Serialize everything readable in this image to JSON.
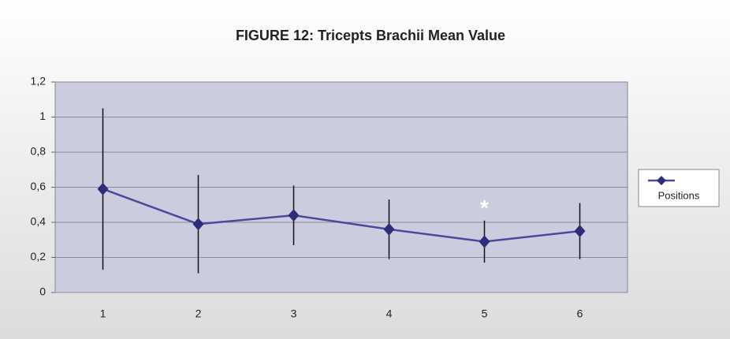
{
  "chart_data": {
    "type": "line",
    "title": "FIGURE 12: Tricepts Brachii Mean Value",
    "categories": [
      "1",
      "2",
      "3",
      "4",
      "5",
      "6"
    ],
    "series": [
      {
        "name": "Positions",
        "color": "#4a4a9a",
        "values": [
          0.59,
          0.39,
          0.44,
          0.36,
          0.29,
          0.35
        ],
        "errors": [
          0.46,
          0.28,
          0.17,
          0.17,
          0.12,
          0.16
        ]
      }
    ],
    "annotation": "*",
    "ylim": [
      0,
      1.2
    ],
    "yticks": [
      0,
      {
        "value": 0.2,
        "label": "0,2"
      },
      {
        "value": 0.4,
        "label": "0,4"
      },
      {
        "value": 0.6,
        "label": "0,6"
      },
      {
        "value": 0.8,
        "label": "0,8"
      },
      1,
      {
        "value": 1.2,
        "label": "1,2"
      }
    ],
    "grid": true,
    "legend": "right"
  }
}
